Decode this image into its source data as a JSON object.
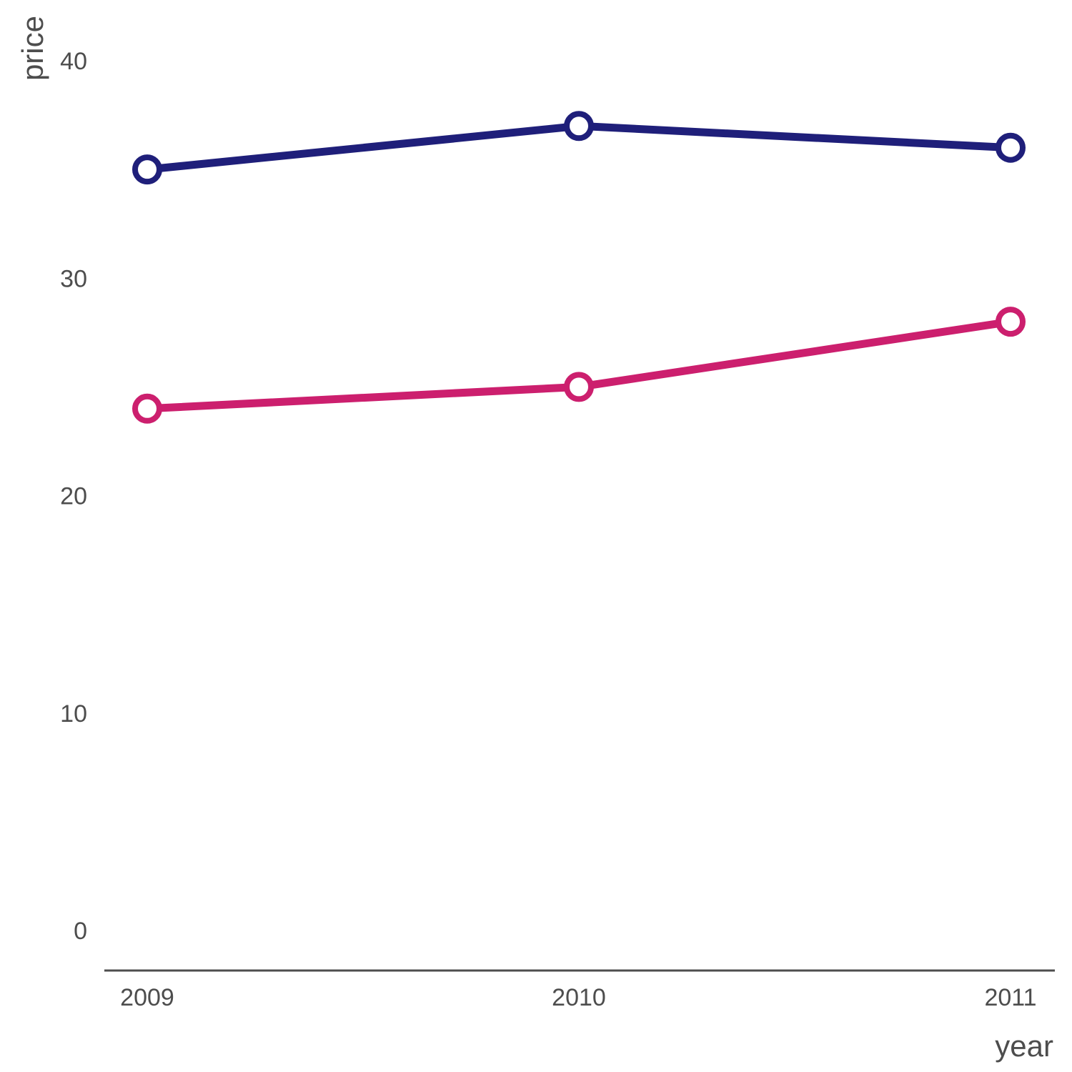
{
  "chart_data": {
    "type": "line",
    "xlabel": "year",
    "ylabel": "price",
    "x": [
      2009,
      2010,
      2011
    ],
    "x_tick_labels": [
      "2009",
      "2010",
      "2011"
    ],
    "ylim": [
      -2,
      42
    ],
    "y_ticks": [
      0,
      10,
      20,
      30,
      40
    ],
    "y_tick_labels": [
      "0",
      "10",
      "20",
      "30",
      "40"
    ],
    "grid": false,
    "legend": "none",
    "series": [
      {
        "color": "#1f1f7a",
        "values": [
          35,
          37,
          36
        ]
      },
      {
        "color": "#cc1f6e",
        "values": [
          24,
          25,
          28
        ]
      }
    ]
  }
}
